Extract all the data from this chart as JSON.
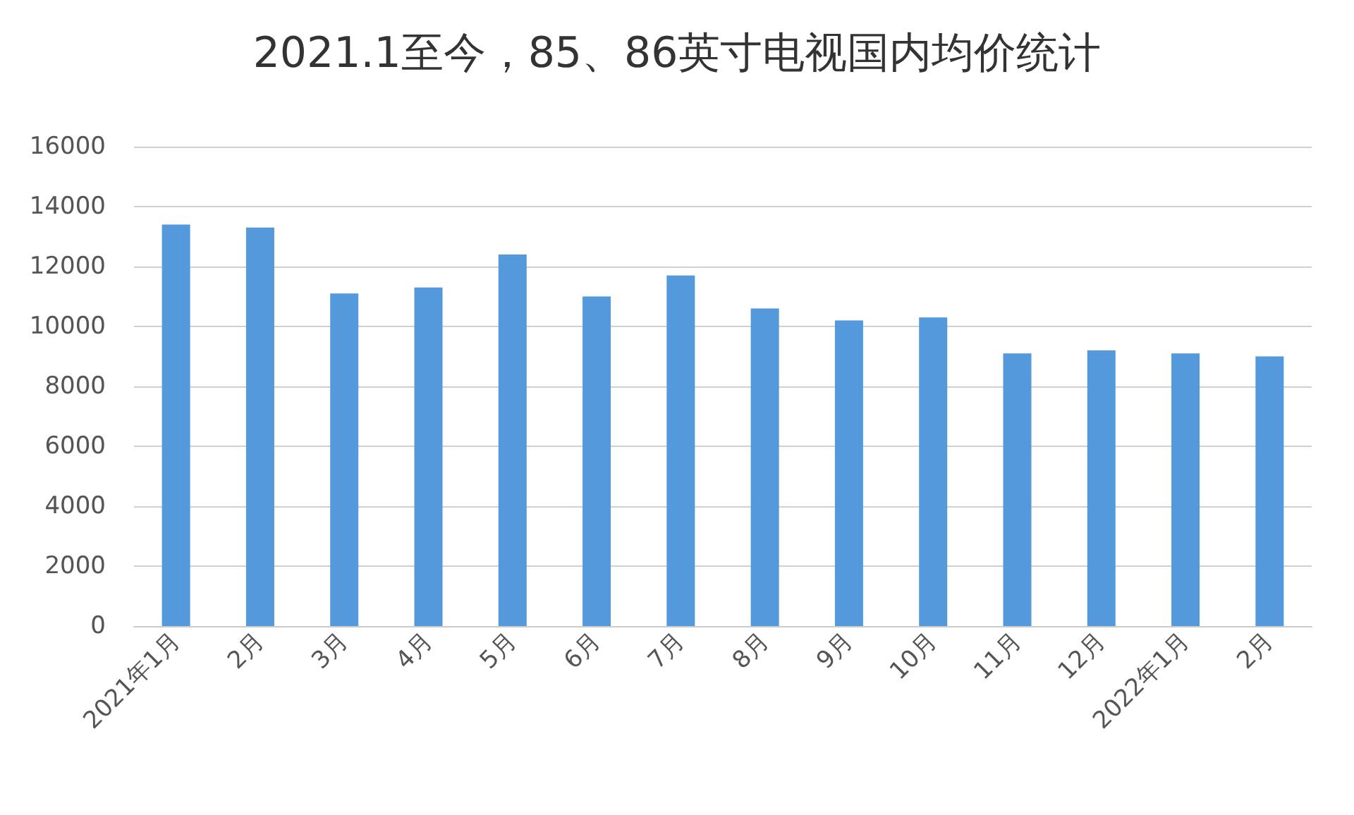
{
  "chart_data": {
    "type": "bar",
    "title": "2021.1至今，85、86英寸电视国内均价统计",
    "categories": [
      "2021年1月",
      "2月",
      "3月",
      "4月",
      "5月",
      "6月",
      "7月",
      "8月",
      "9月",
      "10月",
      "11月",
      "12月",
      "2022年1月",
      "2月"
    ],
    "values": [
      13400,
      13300,
      11100,
      11300,
      12400,
      11000,
      11700,
      10600,
      10200,
      10300,
      9100,
      9200,
      9100,
      9000
    ],
    "color": "#5599dd",
    "ylim": [
      0,
      16000
    ],
    "yticks": [
      0,
      2000,
      4000,
      6000,
      8000,
      10000,
      12000,
      14000,
      16000
    ],
    "grid": "y"
  }
}
